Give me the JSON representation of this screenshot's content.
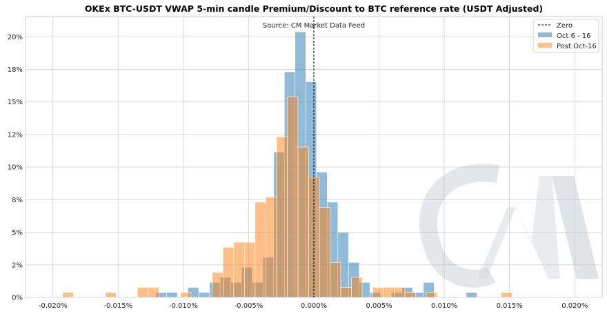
{
  "chart_data": {
    "type": "histogram",
    "title": "OKEx BTC-USDT VWAP 5-min candle Premium/Discount to BTC reference rate (USDT Adjusted)",
    "subtitle": "Source: CM Market Data Feed",
    "watermark": "CM",
    "x_ticks": [
      "-0.020%",
      "-0.015%",
      "-0.010%",
      "-0.005%",
      "0.000%",
      "0.005%",
      "0.010%",
      "0.015%",
      "0.020%"
    ],
    "y_ticks": [
      "0%",
      "2%",
      "5%",
      "8%",
      "10%",
      "12%",
      "15%",
      "18%",
      "20%"
    ],
    "xlim": [
      -0.0221,
      0.0221
    ],
    "ylim": [
      0,
      0.2155
    ],
    "y_tick_values": [
      0,
      0.025,
      0.05,
      0.075,
      0.1,
      0.125,
      0.15,
      0.175,
      0.2
    ],
    "x_tick_values": [
      -0.02,
      -0.015,
      -0.01,
      -0.005,
      0,
      0.005,
      0.01,
      0.015,
      0.02
    ],
    "bin_width": 0.00082,
    "grid": true,
    "legend_position": "top-right",
    "reference_line": {
      "label": "Zero",
      "x": 0,
      "style": "dashed",
      "color": "#000000"
    },
    "series": [
      {
        "name": "Oct 6 - 16",
        "color": "#1f77b4",
        "bins": [
          {
            "x0": -0.0121,
            "h": 0.0038
          },
          {
            "x0": -0.01128,
            "h": 0.0038
          },
          {
            "x0": -0.00964,
            "h": 0.0077
          },
          {
            "x0": -0.00882,
            "h": 0.0038
          },
          {
            "x0": -0.008,
            "h": 0.0115
          },
          {
            "x0": -0.00718,
            "h": 0.0154
          },
          {
            "x0": -0.00636,
            "h": 0.0115
          },
          {
            "x0": -0.00554,
            "h": 0.0231
          },
          {
            "x0": -0.00472,
            "h": 0.0115
          },
          {
            "x0": -0.0039,
            "h": 0.0308
          },
          {
            "x0": -0.00308,
            "h": 0.1115
          },
          {
            "x0": -0.00226,
            "h": 0.1731
          },
          {
            "x0": -0.00144,
            "h": 0.2038
          },
          {
            "x0": -0.00062,
            "h": 0.1654
          },
          {
            "x0": 0.0002,
            "h": 0.0962
          },
          {
            "x0": 0.00102,
            "h": 0.0731
          },
          {
            "x0": 0.00184,
            "h": 0.05
          },
          {
            "x0": 0.00266,
            "h": 0.0269
          },
          {
            "x0": 0.00348,
            "h": 0.0115
          },
          {
            "x0": 0.0043,
            "h": 0.0038
          },
          {
            "x0": 0.00594,
            "h": 0.0038
          },
          {
            "x0": 0.00676,
            "h": 0.0077
          },
          {
            "x0": 0.00758,
            "h": 0.0038
          },
          {
            "x0": 0.0084,
            "h": 0.0115
          },
          {
            "x0": 0.01168,
            "h": 0.0038
          }
        ]
      },
      {
        "name": "Post Oct-16",
        "color": "#ff7f0e",
        "bins": [
          {
            "x0": -0.01926,
            "h": 0.0038
          },
          {
            "x0": -0.01598,
            "h": 0.0038
          },
          {
            "x0": -0.01352,
            "h": 0.0077
          },
          {
            "x0": -0.0127,
            "h": 0.0077
          },
          {
            "x0": -0.01024,
            "h": 0.0038
          },
          {
            "x0": -0.00778,
            "h": 0.0192
          },
          {
            "x0": -0.00696,
            "h": 0.0385
          },
          {
            "x0": -0.00614,
            "h": 0.0423
          },
          {
            "x0": -0.00532,
            "h": 0.0423
          },
          {
            "x0": -0.0045,
            "h": 0.0731
          },
          {
            "x0": -0.00368,
            "h": 0.0769
          },
          {
            "x0": -0.00286,
            "h": 0.1231
          },
          {
            "x0": -0.00204,
            "h": 0.1538
          },
          {
            "x0": -0.00122,
            "h": 0.1154
          },
          {
            "x0": -0.0004,
            "h": 0.0923
          },
          {
            "x0": 0.00042,
            "h": 0.0692
          },
          {
            "x0": 0.00124,
            "h": 0.0269
          },
          {
            "x0": 0.00206,
            "h": 0.0077
          },
          {
            "x0": 0.00288,
            "h": 0.0154
          },
          {
            "x0": 0.00452,
            "h": 0.0077
          },
          {
            "x0": 0.00534,
            "h": 0.0077
          },
          {
            "x0": 0.00616,
            "h": 0.0077
          },
          {
            "x0": 0.00698,
            "h": 0.0038
          },
          {
            "x0": 0.00862,
            "h": 0.0038
          },
          {
            "x0": 0.01436,
            "h": 0.0038
          }
        ]
      }
    ]
  }
}
